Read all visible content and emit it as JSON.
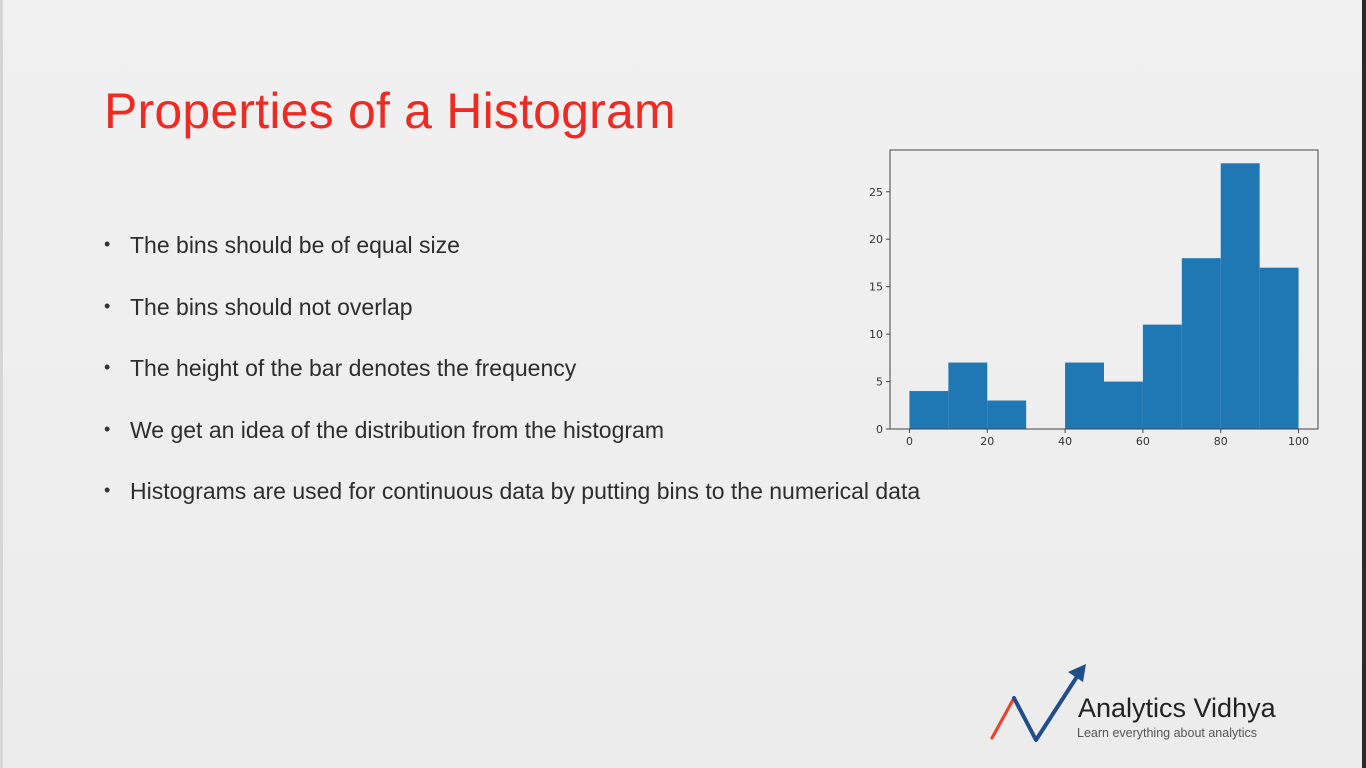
{
  "slide": {
    "title": "Properties of a Histogram",
    "bullets": [
      "The bins should be of equal size",
      "The bins should not overlap",
      "The height of the bar denotes the frequency",
      "We get an idea of the distribution from the histogram",
      "Histograms are used for continuous data by putting bins to the numerical data"
    ],
    "bullet_marker": "•",
    "title_color": "#ee2a22"
  },
  "chart_data": {
    "type": "bar",
    "title": "",
    "xlabel": "",
    "ylabel": "",
    "bin_edges": [
      0,
      10,
      20,
      30,
      40,
      50,
      60,
      70,
      80,
      90,
      100
    ],
    "values": [
      4,
      7,
      3,
      0,
      7,
      5,
      11,
      18,
      28,
      17
    ],
    "xlim": [
      -5,
      105
    ],
    "ylim": [
      0,
      29.4
    ],
    "xticks": [
      0,
      20,
      40,
      60,
      80,
      100
    ],
    "yticks": [
      0,
      5,
      10,
      15,
      20,
      25
    ],
    "bar_color": "#1f77b4",
    "grid": false
  },
  "logo": {
    "name": "Analytics Vidhya",
    "tagline": "Learn everything about analytics",
    "arrow_color": "#1f4e89",
    "accent_color": "#e8452c"
  }
}
